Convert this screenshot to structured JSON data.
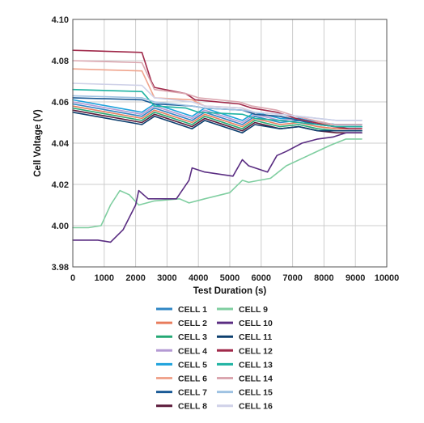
{
  "chart_data": {
    "type": "line",
    "xlabel": "Test Duration (s)",
    "ylabel": "Cell Voltage (V)",
    "xlim": [
      0,
      10000
    ],
    "ylim": [
      3.98,
      4.1
    ],
    "x_ticks": [
      0,
      1000,
      2000,
      3000,
      4000,
      5000,
      6000,
      7000,
      8000,
      9000,
      10000
    ],
    "y_ticks": [
      3.98,
      4.0,
      4.02,
      4.04,
      4.06,
      4.08,
      4.1
    ],
    "x_tick_labels": [
      "0",
      "1000",
      "2000",
      "3000",
      "4000",
      "5000",
      "6000",
      "7000",
      "8000",
      "9000",
      "10000"
    ],
    "y_tick_labels": [
      "3.98",
      "4.00",
      "4.02",
      "4.04",
      "4.06",
      "4.08",
      "4.10"
    ],
    "grid": true,
    "legend_position": "bottom",
    "series": [
      {
        "name": "CELL 1",
        "color": "#2f86c4",
        "x": [
          0,
          2200,
          2600,
          3800,
          4200,
          5400,
          5800,
          6600,
          7200,
          7800,
          8400,
          9200
        ],
        "values": [
          4.059,
          4.053,
          4.057,
          4.051,
          4.055,
          4.049,
          4.053,
          4.05,
          4.051,
          4.049,
          4.048,
          4.048
        ]
      },
      {
        "name": "CELL 2",
        "color": "#e87c5c",
        "x": [
          0,
          2200,
          2600,
          3800,
          4200,
          5400,
          5800,
          6600,
          7200,
          7800,
          8400,
          9200
        ],
        "values": [
          4.058,
          4.052,
          4.056,
          4.05,
          4.054,
          4.048,
          4.052,
          4.049,
          4.05,
          4.048,
          4.047,
          4.047
        ]
      },
      {
        "name": "CELL 3",
        "color": "#23a874",
        "x": [
          0,
          2200,
          2600,
          3800,
          4200,
          5400,
          5800,
          6600,
          7200,
          7800,
          8400,
          9200
        ],
        "values": [
          4.057,
          4.051,
          4.055,
          4.049,
          4.053,
          4.047,
          4.051,
          4.048,
          4.049,
          4.047,
          4.046,
          4.046
        ]
      },
      {
        "name": "CELL 4",
        "color": "#b49ad4",
        "x": [
          0,
          2200,
          2600,
          3800,
          4200,
          5400,
          5800,
          6600,
          7200,
          7800,
          8400,
          9200
        ],
        "values": [
          4.06,
          4.054,
          4.058,
          4.052,
          4.056,
          4.05,
          4.054,
          4.051,
          4.052,
          4.05,
          4.049,
          4.049
        ]
      },
      {
        "name": "CELL 5",
        "color": "#1ea2dc",
        "x": [
          0,
          2200,
          2600,
          3800,
          4200,
          5400,
          5800,
          6600,
          7200,
          7800,
          8400,
          9200
        ],
        "values": [
          4.061,
          4.055,
          4.059,
          4.053,
          4.057,
          4.051,
          4.055,
          4.052,
          4.052,
          4.05,
          4.049,
          4.049
        ]
      },
      {
        "name": "CELL 6",
        "color": "#f0a58e",
        "x": [
          0,
          2200,
          2600,
          3800,
          4200,
          5400,
          5800,
          6600,
          7200,
          7800,
          8400,
          9200
        ],
        "values": [
          4.076,
          4.075,
          4.062,
          4.061,
          4.058,
          4.057,
          4.054,
          4.053,
          4.051,
          4.05,
          4.048,
          4.048
        ]
      },
      {
        "name": "CELL 7",
        "color": "#1a5a96",
        "x": [
          0,
          2200,
          2600,
          3800,
          4200,
          5400,
          5800,
          6600,
          7200,
          7800,
          8400,
          9200
        ],
        "values": [
          4.062,
          4.061,
          4.059,
          4.058,
          4.057,
          4.056,
          4.054,
          4.053,
          4.051,
          4.049,
          4.048,
          4.048
        ]
      },
      {
        "name": "CELL 8",
        "color": "#5c1a3a",
        "x": [
          0,
          2200,
          2600,
          3800,
          4200,
          5400,
          5800,
          6600,
          7200,
          7800,
          8400,
          9200
        ],
        "values": [
          4.056,
          4.05,
          4.054,
          4.048,
          4.052,
          4.046,
          4.05,
          4.047,
          4.048,
          4.046,
          4.045,
          4.045
        ]
      },
      {
        "name": "CELL 9",
        "color": "#7fcea0",
        "x": [
          0,
          500,
          900,
          1200,
          1500,
          1800,
          2100,
          2600,
          3400,
          3700,
          4200,
          5000,
          5400,
          5600,
          6300,
          6800,
          7500,
          8200,
          8700,
          9200
        ],
        "values": [
          3.999,
          3.999,
          4.0,
          4.01,
          4.017,
          4.015,
          4.01,
          4.012,
          4.013,
          4.011,
          4.013,
          4.016,
          4.022,
          4.021,
          4.023,
          4.029,
          4.034,
          4.039,
          4.042,
          4.042
        ]
      },
      {
        "name": "CELL 10",
        "color": "#5a2d82",
        "x": [
          0,
          800,
          1200,
          1600,
          2000,
          2100,
          2400,
          3300,
          3700,
          3800,
          4200,
          5100,
          5400,
          5600,
          6200,
          6500,
          6800,
          7300,
          7800,
          8300,
          8700,
          9200
        ],
        "values": [
          3.993,
          3.993,
          3.992,
          3.998,
          4.01,
          4.017,
          4.013,
          4.013,
          4.022,
          4.028,
          4.026,
          4.024,
          4.032,
          4.029,
          4.026,
          4.034,
          4.036,
          4.04,
          4.042,
          4.043,
          4.045,
          4.045
        ]
      },
      {
        "name": "CELL 11",
        "color": "#0c3f6e",
        "x": [
          0,
          2200,
          2600,
          3800,
          4200,
          5400,
          5800,
          6600,
          7200,
          7800,
          8400,
          9200
        ],
        "values": [
          4.055,
          4.049,
          4.053,
          4.047,
          4.051,
          4.045,
          4.049,
          4.047,
          4.048,
          4.046,
          4.046,
          4.046
        ]
      },
      {
        "name": "CELL 12",
        "color": "#a0294a",
        "x": [
          0,
          2200,
          2500,
          2600,
          3600,
          3900,
          5300,
          5700,
          6500,
          7100,
          7700,
          8300,
          8800,
          9200
        ],
        "values": [
          4.085,
          4.084,
          4.07,
          4.067,
          4.064,
          4.061,
          4.059,
          4.057,
          4.055,
          4.052,
          4.05,
          4.048,
          4.047,
          4.047
        ]
      },
      {
        "name": "CELL 13",
        "color": "#1fb3a2",
        "x": [
          0,
          2200,
          2600,
          3600,
          4000,
          5400,
          5800,
          6600,
          7200,
          7800,
          8400,
          9200
        ],
        "values": [
          4.066,
          4.065,
          4.058,
          4.057,
          4.055,
          4.054,
          4.052,
          4.051,
          4.05,
          4.049,
          4.048,
          4.048
        ]
      },
      {
        "name": "CELL 14",
        "color": "#dba7b0",
        "x": [
          0,
          2200,
          2600,
          3600,
          4000,
          5300,
          5700,
          6500,
          7100,
          7700,
          8300,
          9200
        ],
        "values": [
          4.08,
          4.079,
          4.066,
          4.064,
          4.062,
          4.06,
          4.058,
          4.056,
          4.053,
          4.051,
          4.049,
          4.049
        ]
      },
      {
        "name": "CELL 15",
        "color": "#9fc2e2",
        "x": [
          0,
          2200,
          2600,
          3800,
          4200,
          5400,
          5800,
          6600,
          7200,
          7800,
          8400,
          9200
        ],
        "values": [
          4.063,
          4.062,
          4.06,
          4.058,
          4.057,
          4.056,
          4.055,
          4.054,
          4.053,
          4.052,
          4.051,
          4.051
        ]
      },
      {
        "name": "CELL 16",
        "color": "#cfd1e8",
        "x": [
          0,
          2200,
          2600,
          3800,
          4200,
          5400,
          5800,
          6600,
          7200,
          7800,
          8400,
          9200
        ],
        "values": [
          4.069,
          4.068,
          4.062,
          4.06,
          4.058,
          4.057,
          4.055,
          4.054,
          4.053,
          4.052,
          4.051,
          4.051
        ]
      }
    ]
  }
}
